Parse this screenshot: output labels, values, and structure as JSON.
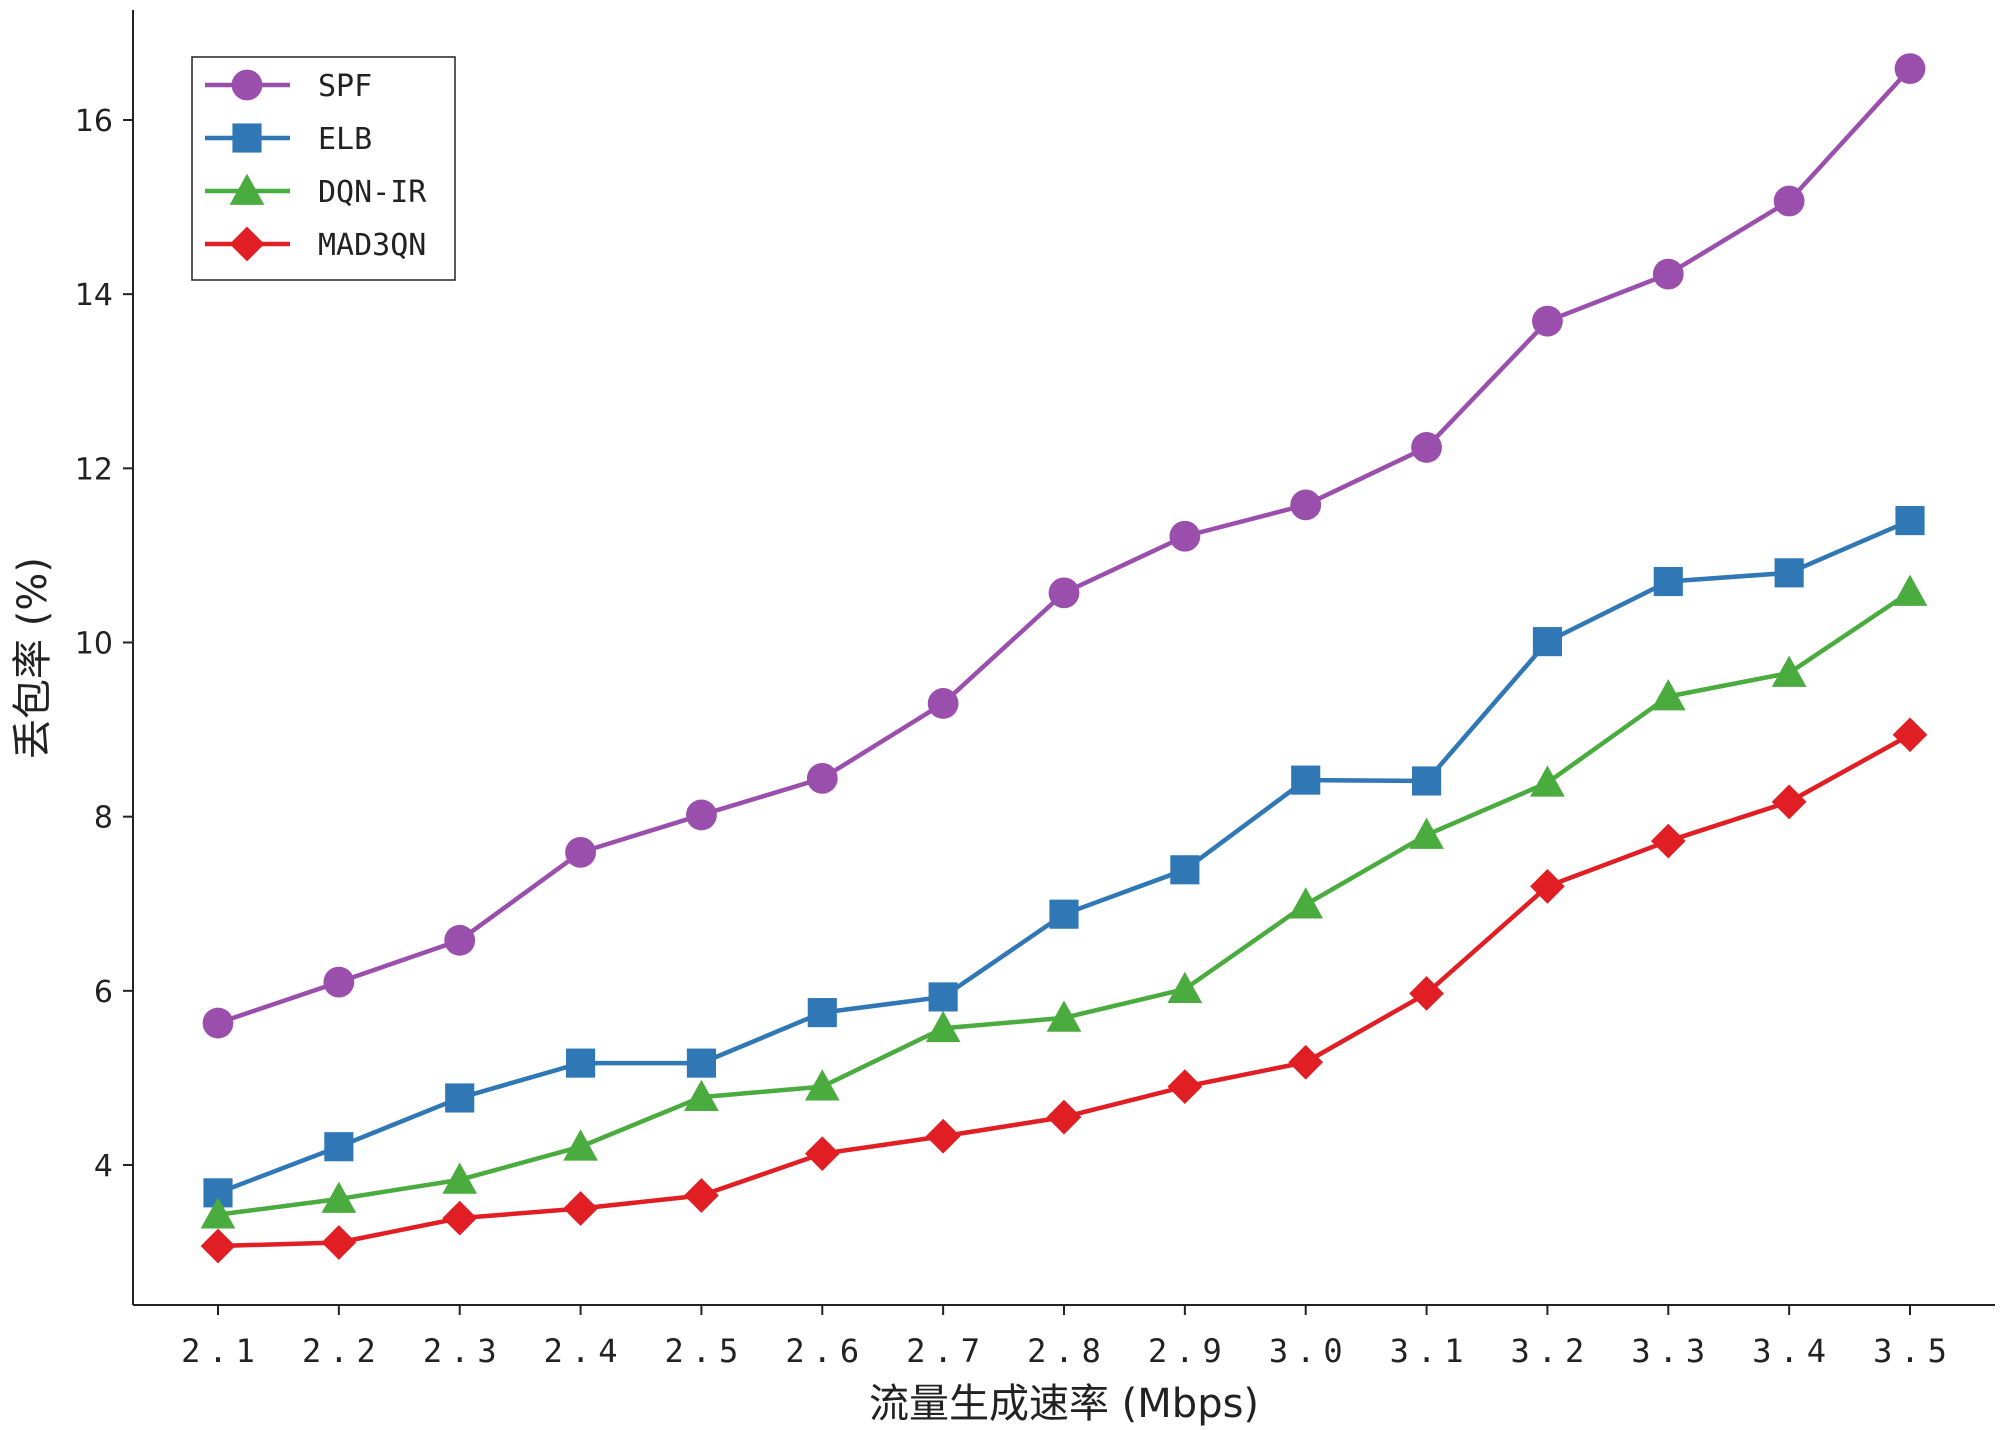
{
  "chart_data": {
    "type": "line",
    "title": "",
    "xlabel": "流量生成速率 (Mbps)",
    "ylabel": "丢包率 (%)",
    "categories": [
      "2.1",
      "2.2",
      "2.3",
      "2.4",
      "2.5",
      "2.6",
      "2.7",
      "2.8",
      "2.9",
      "3.0",
      "3.1",
      "3.2",
      "3.3",
      "3.4",
      "3.5"
    ],
    "x": [
      2.1,
      2.2,
      2.3,
      2.4,
      2.5,
      2.6,
      2.7,
      2.8,
      2.9,
      3.0,
      3.1,
      3.2,
      3.3,
      3.4,
      3.5
    ],
    "ylim": [
      2.6,
      17.3
    ],
    "yticks": [
      4,
      6,
      8,
      10,
      12,
      14,
      16
    ],
    "grid": false,
    "legend_position": "top-left",
    "series": [
      {
        "name": "SPF",
        "color": "#9b4fad",
        "marker": "circle",
        "values": [
          5.63,
          6.1,
          6.58,
          7.59,
          8.02,
          8.44,
          9.3,
          10.57,
          11.22,
          11.58,
          12.24,
          13.69,
          14.23,
          15.07,
          16.59
        ]
      },
      {
        "name": "ELB",
        "color": "#2f77b5",
        "marker": "square",
        "values": [
          3.68,
          4.21,
          4.77,
          5.17,
          5.17,
          5.75,
          5.93,
          6.88,
          7.39,
          8.42,
          8.41,
          10.01,
          10.7,
          10.8,
          11.4
        ]
      },
      {
        "name": "DQN-IR",
        "color": "#4aab3f",
        "marker": "triangle",
        "values": [
          3.43,
          3.61,
          3.83,
          4.21,
          4.78,
          4.9,
          5.57,
          5.69,
          6.02,
          6.99,
          7.79,
          8.39,
          9.38,
          9.65,
          10.58
        ]
      },
      {
        "name": "MAD3QN",
        "color": "#e11e24",
        "marker": "diamond",
        "values": [
          3.07,
          3.11,
          3.39,
          3.5,
          3.65,
          4.13,
          4.33,
          4.55,
          4.9,
          5.18,
          5.97,
          7.2,
          7.72,
          8.17,
          8.94
        ]
      }
    ]
  }
}
